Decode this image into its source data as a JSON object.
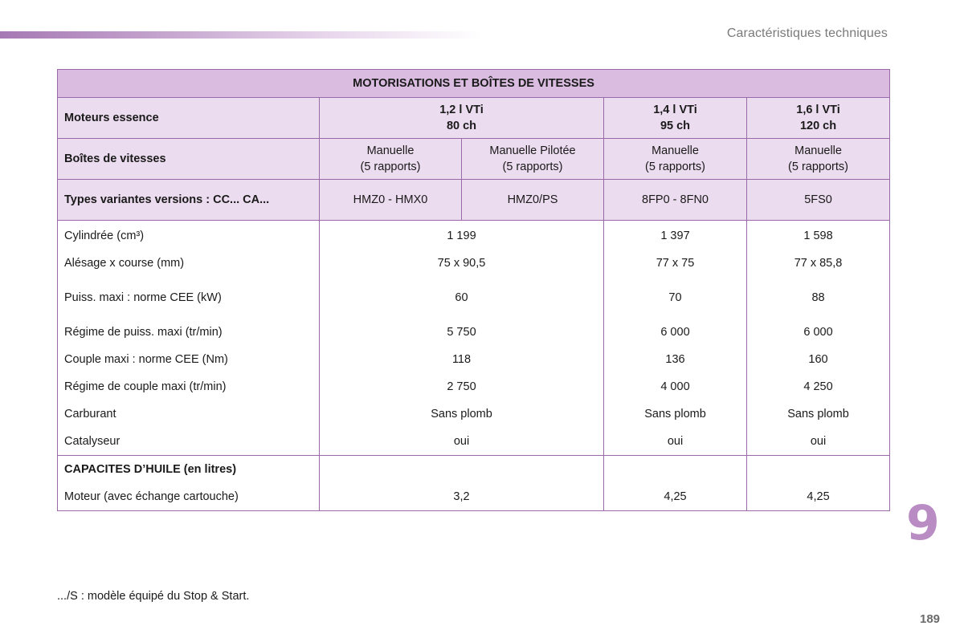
{
  "header": {
    "section_title": "Caractéristiques techniques"
  },
  "table": {
    "title": "MOTORISATIONS ET BOÎTES DE VITESSES",
    "engines_label": "Moteurs essence",
    "engines": [
      {
        "line1": "1,2 l VTi",
        "line2": "80 ch"
      },
      {
        "line1": "1,4 l VTi",
        "line2": "95 ch"
      },
      {
        "line1": "1,6 l VTi",
        "line2": "120 ch"
      }
    ],
    "gearbox_label": "Boîtes de vitesses",
    "gearboxes": [
      {
        "line1": "Manuelle",
        "line2": "(5 rapports)"
      },
      {
        "line1": "Manuelle Pilotée",
        "line2": "(5 rapports)"
      },
      {
        "line1": "Manuelle",
        "line2": "(5 rapports)"
      },
      {
        "line1": "Manuelle",
        "line2": "(5 rapports)"
      }
    ],
    "types_label": "Types variantes versions : CC... CA...",
    "types": [
      "HMZ0 - HMX0",
      "HMZ0/PS",
      "8FP0 - 8FN0",
      "5FS0"
    ],
    "rows": [
      {
        "label": "Cylindrée (cm³)",
        "values": [
          "1 199",
          "1 397",
          "1 598"
        ]
      },
      {
        "label": "Alésage x course (mm)",
        "values": [
          "75 x 90,5",
          "77 x 75",
          "77 x 85,8"
        ]
      },
      {
        "label": "Puiss. maxi : norme CEE (kW)",
        "values": [
          "60",
          "70",
          "88"
        ]
      },
      {
        "label": "Régime de puiss. maxi (tr/min)",
        "values": [
          "5 750",
          "6 000",
          "6 000"
        ]
      },
      {
        "label": "Couple maxi : norme CEE (Nm)",
        "values": [
          "118",
          "136",
          "160"
        ]
      },
      {
        "label": "Régime de couple maxi (tr/min)",
        "values": [
          "2 750",
          "4 000",
          "4 250"
        ]
      },
      {
        "label": "Carburant",
        "values": [
          "Sans plomb",
          "Sans plomb",
          "Sans plomb"
        ]
      },
      {
        "label": "Catalyseur",
        "values": [
          "oui",
          "oui",
          "oui"
        ]
      }
    ],
    "oil_section_label": "CAPACITES D’HUILE (en litres)",
    "oil_row": {
      "label": "Moteur (avec échange cartouche)",
      "values": [
        "3,2",
        "4,25",
        "4,25"
      ]
    }
  },
  "chapter_number": "9",
  "footnote": ".../S : modèle équipé du Stop & Start.",
  "page_number": "189",
  "colors": {
    "accent": "#b98cc4",
    "header_fill": "#d9bcdf",
    "subheader_fill": "#ecdcef",
    "border": "#9a6aa8"
  }
}
